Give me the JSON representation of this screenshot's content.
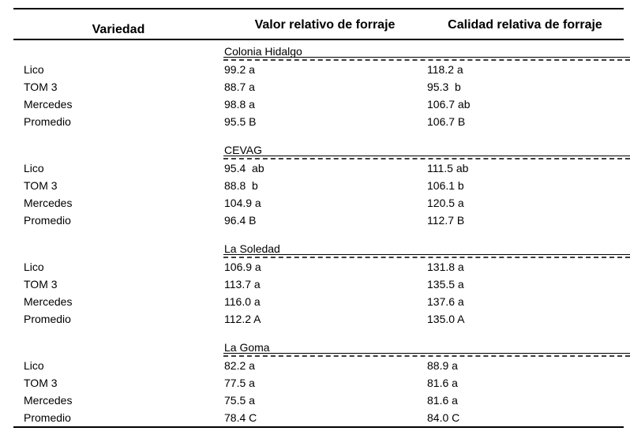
{
  "table": {
    "columns": [
      "Variedad",
      "Valor relativo de forraje",
      "Calidad relativa de forraje"
    ],
    "sections": [
      {
        "name": "Colonia Hidalgo",
        "rows": [
          {
            "variety": "Lico",
            "valor": "99.2 a",
            "calidad": "118.2 a"
          },
          {
            "variety": "TOM 3",
            "valor": "88.7 a",
            "calidad": "95.3  b"
          },
          {
            "variety": "Mercedes",
            "valor": "98.8 a",
            "calidad": "106.7 ab"
          },
          {
            "variety": "Promedio",
            "valor": "95.5 B",
            "calidad": "106.7 B"
          }
        ]
      },
      {
        "name": "CEVAG",
        "rows": [
          {
            "variety": "Lico",
            "valor": "95.4  ab",
            "calidad": "111.5 ab"
          },
          {
            "variety": "TOM 3",
            "valor": "88.8  b",
            "calidad": "106.1 b"
          },
          {
            "variety": "Mercedes",
            "valor": "104.9 a",
            "calidad": "120.5 a"
          },
          {
            "variety": "Promedio",
            "valor": "96.4 B",
            "calidad": "112.7 B"
          }
        ]
      },
      {
        "name": "La Soledad",
        "rows": [
          {
            "variety": "Lico",
            "valor": "106.9 a",
            "calidad": "131.8 a"
          },
          {
            "variety": "TOM 3",
            "valor": "113.7 a",
            "calidad": "135.5 a"
          },
          {
            "variety": "Mercedes",
            "valor": "116.0 a",
            "calidad": "137.6 a"
          },
          {
            "variety": "Promedio",
            "valor": "112.2 A",
            "calidad": "135.0 A"
          }
        ]
      },
      {
        "name": "La Goma",
        "rows": [
          {
            "variety": "Lico",
            "valor": "82.2 a",
            "calidad": "88.9 a"
          },
          {
            "variety": "TOM 3",
            "valor": "77.5 a",
            "calidad": "81.6 a"
          },
          {
            "variety": "Mercedes",
            "valor": "75.5 a",
            "calidad": "81.6 a"
          },
          {
            "variety": "Promedio",
            "valor": "78.4 C",
            "calidad": "84.0 C"
          }
        ]
      }
    ],
    "colors": {
      "text": "#000000",
      "rule": "#000000",
      "dashed_rule": "#3d3d3d",
      "background": "#ffffff"
    }
  }
}
